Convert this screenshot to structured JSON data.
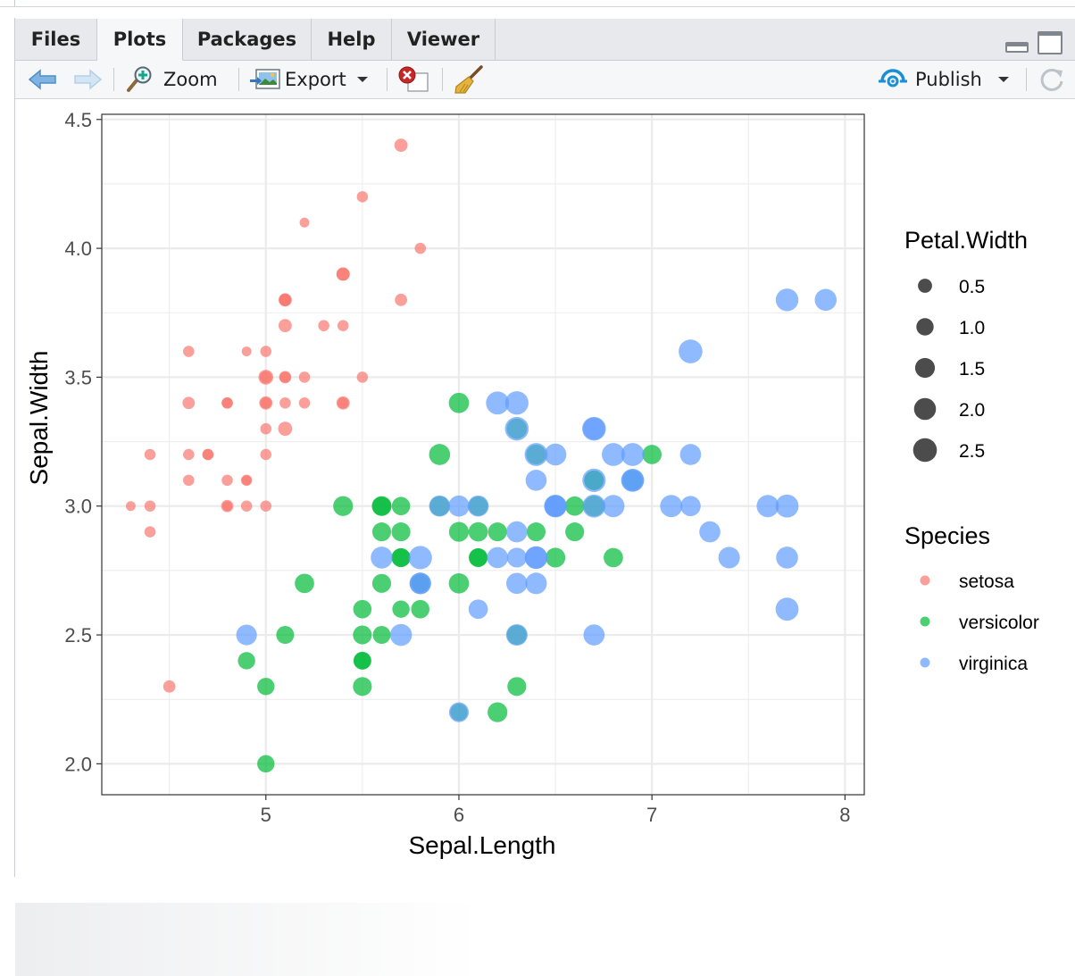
{
  "tabs": [
    {
      "label": "Files",
      "active": false
    },
    {
      "label": "Plots",
      "active": true
    },
    {
      "label": "Packages",
      "active": false
    },
    {
      "label": "Help",
      "active": false
    },
    {
      "label": "Viewer",
      "active": false
    }
  ],
  "toolbar": {
    "zoom_label": "Zoom",
    "export_label": "Export",
    "publish_label": "Publish"
  },
  "colors": {
    "setosa": "#F8766D",
    "versicolor": "#00BA38",
    "virginica": "#619CFF",
    "grid": "#ebebeb"
  },
  "icons": {
    "back": "arrow-left-icon",
    "forward": "arrow-right-icon",
    "zoom": "magnifier-plus-icon",
    "export": "picture-export-icon",
    "remove": "remove-plot-icon",
    "clear": "broom-icon",
    "publish": "publish-icon",
    "refresh": "refresh-icon"
  },
  "chart_data": {
    "type": "scatter",
    "title": "",
    "xlabel": "Sepal.Length",
    "ylabel": "Sepal.Width",
    "xlim": [
      4.15,
      8.1
    ],
    "ylim": [
      1.88,
      4.52
    ],
    "x_ticks": [
      "5",
      "6",
      "7",
      "8"
    ],
    "y_ticks": [
      "2.0",
      "2.5",
      "3.0",
      "3.5",
      "4.0",
      "4.5"
    ],
    "grid": true,
    "size_legend": {
      "title": "Petal.Width",
      "items": [
        {
          "label": "0.5",
          "value": 0.5
        },
        {
          "label": "1.0",
          "value": 1.0
        },
        {
          "label": "1.5",
          "value": 1.5
        },
        {
          "label": "2.0",
          "value": 2.0
        },
        {
          "label": "2.5",
          "value": 2.5
        }
      ]
    },
    "color_legend": {
      "title": "Species",
      "items": [
        "setosa",
        "versicolor",
        "virginica"
      ]
    },
    "legend_position": "right",
    "series": [
      {
        "name": "setosa",
        "points": [
          [
            5.1,
            3.5,
            0.2
          ],
          [
            4.9,
            3.0,
            0.2
          ],
          [
            4.7,
            3.2,
            0.2
          ],
          [
            4.6,
            3.1,
            0.2
          ],
          [
            5.0,
            3.6,
            0.2
          ],
          [
            5.4,
            3.9,
            0.4
          ],
          [
            4.6,
            3.4,
            0.3
          ],
          [
            5.0,
            3.4,
            0.2
          ],
          [
            4.4,
            2.9,
            0.2
          ],
          [
            4.9,
            3.1,
            0.1
          ],
          [
            5.4,
            3.7,
            0.2
          ],
          [
            4.8,
            3.4,
            0.2
          ],
          [
            4.8,
            3.0,
            0.1
          ],
          [
            4.3,
            3.0,
            0.1
          ],
          [
            5.8,
            4.0,
            0.2
          ],
          [
            5.7,
            4.4,
            0.4
          ],
          [
            5.4,
            3.9,
            0.4
          ],
          [
            5.1,
            3.5,
            0.3
          ],
          [
            5.7,
            3.8,
            0.3
          ],
          [
            5.1,
            3.8,
            0.3
          ],
          [
            5.4,
            3.4,
            0.2
          ],
          [
            5.1,
            3.7,
            0.4
          ],
          [
            4.6,
            3.6,
            0.2
          ],
          [
            5.1,
            3.3,
            0.5
          ],
          [
            4.8,
            3.4,
            0.2
          ],
          [
            5.0,
            3.0,
            0.2
          ],
          [
            5.0,
            3.4,
            0.4
          ],
          [
            5.2,
            3.5,
            0.2
          ],
          [
            5.2,
            3.4,
            0.2
          ],
          [
            4.7,
            3.2,
            0.2
          ],
          [
            4.8,
            3.1,
            0.2
          ],
          [
            5.4,
            3.4,
            0.4
          ],
          [
            5.2,
            4.1,
            0.1
          ],
          [
            5.5,
            4.2,
            0.2
          ],
          [
            4.9,
            3.1,
            0.2
          ],
          [
            5.0,
            3.2,
            0.2
          ],
          [
            5.5,
            3.5,
            0.2
          ],
          [
            4.9,
            3.6,
            0.1
          ],
          [
            4.4,
            3.0,
            0.2
          ],
          [
            5.1,
            3.4,
            0.2
          ],
          [
            5.0,
            3.5,
            0.3
          ],
          [
            4.5,
            2.3,
            0.3
          ],
          [
            4.4,
            3.2,
            0.2
          ],
          [
            5.0,
            3.5,
            0.6
          ],
          [
            5.1,
            3.8,
            0.4
          ],
          [
            4.8,
            3.0,
            0.3
          ],
          [
            5.1,
            3.8,
            0.2
          ],
          [
            4.6,
            3.2,
            0.2
          ],
          [
            5.3,
            3.7,
            0.2
          ],
          [
            5.0,
            3.3,
            0.2
          ]
        ]
      },
      {
        "name": "versicolor",
        "points": [
          [
            7.0,
            3.2,
            1.4
          ],
          [
            6.4,
            3.2,
            1.5
          ],
          [
            6.9,
            3.1,
            1.5
          ],
          [
            5.5,
            2.3,
            1.3
          ],
          [
            6.5,
            2.8,
            1.5
          ],
          [
            5.7,
            2.8,
            1.3
          ],
          [
            6.3,
            3.3,
            1.6
          ],
          [
            4.9,
            2.4,
            1.0
          ],
          [
            6.6,
            2.9,
            1.3
          ],
          [
            5.2,
            2.7,
            1.4
          ],
          [
            5.0,
            2.0,
            1.0
          ],
          [
            5.9,
            3.0,
            1.5
          ],
          [
            6.0,
            2.2,
            1.0
          ],
          [
            6.1,
            2.9,
            1.4
          ],
          [
            5.6,
            2.9,
            1.3
          ],
          [
            6.7,
            3.1,
            1.4
          ],
          [
            5.6,
            3.0,
            1.5
          ],
          [
            5.8,
            2.7,
            1.0
          ],
          [
            6.2,
            2.2,
            1.5
          ],
          [
            5.6,
            2.5,
            1.1
          ],
          [
            5.9,
            3.2,
            1.8
          ],
          [
            6.1,
            2.8,
            1.3
          ],
          [
            6.3,
            2.5,
            1.5
          ],
          [
            6.1,
            2.8,
            1.2
          ],
          [
            6.4,
            2.9,
            1.3
          ],
          [
            6.6,
            3.0,
            1.4
          ],
          [
            6.8,
            2.8,
            1.4
          ],
          [
            6.7,
            3.0,
            1.7
          ],
          [
            6.0,
            2.9,
            1.5
          ],
          [
            5.7,
            2.6,
            1.0
          ],
          [
            5.5,
            2.4,
            1.1
          ],
          [
            5.5,
            2.4,
            1.0
          ],
          [
            5.8,
            2.7,
            1.2
          ],
          [
            6.0,
            2.7,
            1.6
          ],
          [
            5.4,
            3.0,
            1.5
          ],
          [
            6.0,
            3.4,
            1.6
          ],
          [
            6.7,
            3.1,
            1.5
          ],
          [
            6.3,
            2.3,
            1.3
          ],
          [
            5.6,
            3.0,
            1.3
          ],
          [
            5.5,
            2.5,
            1.3
          ],
          [
            5.5,
            2.6,
            1.2
          ],
          [
            6.1,
            3.0,
            1.4
          ],
          [
            5.8,
            2.6,
            1.2
          ],
          [
            5.0,
            2.3,
            1.0
          ],
          [
            5.6,
            2.7,
            1.3
          ],
          [
            5.7,
            3.0,
            1.2
          ],
          [
            5.7,
            2.9,
            1.3
          ],
          [
            6.2,
            2.9,
            1.3
          ],
          [
            5.1,
            2.5,
            1.1
          ],
          [
            5.7,
            2.8,
            1.3
          ]
        ]
      },
      {
        "name": "virginica",
        "points": [
          [
            6.3,
            3.3,
            2.5
          ],
          [
            5.8,
            2.7,
            1.9
          ],
          [
            7.1,
            3.0,
            2.1
          ],
          [
            6.3,
            2.9,
            1.8
          ],
          [
            6.5,
            3.0,
            2.2
          ],
          [
            7.6,
            3.0,
            2.1
          ],
          [
            4.9,
            2.5,
            1.7
          ],
          [
            7.3,
            2.9,
            1.8
          ],
          [
            6.7,
            2.5,
            1.8
          ],
          [
            7.2,
            3.6,
            2.5
          ],
          [
            6.5,
            3.2,
            2.0
          ],
          [
            6.4,
            2.7,
            1.9
          ],
          [
            6.8,
            3.0,
            2.1
          ],
          [
            5.7,
            2.5,
            2.0
          ],
          [
            5.8,
            2.8,
            2.4
          ],
          [
            6.4,
            3.2,
            2.3
          ],
          [
            6.5,
            3.0,
            1.8
          ],
          [
            7.7,
            3.8,
            2.2
          ],
          [
            7.7,
            2.6,
            2.3
          ],
          [
            6.0,
            2.2,
            1.5
          ],
          [
            6.9,
            3.2,
            2.3
          ],
          [
            5.6,
            2.8,
            2.0
          ],
          [
            7.7,
            2.8,
            2.0
          ],
          [
            6.3,
            2.7,
            1.8
          ],
          [
            6.7,
            3.3,
            2.1
          ],
          [
            7.2,
            3.2,
            1.8
          ],
          [
            6.2,
            2.8,
            1.8
          ],
          [
            6.1,
            3.0,
            1.8
          ],
          [
            6.4,
            2.8,
            2.1
          ],
          [
            7.2,
            3.0,
            1.6
          ],
          [
            7.4,
            2.8,
            1.9
          ],
          [
            7.9,
            3.8,
            2.0
          ],
          [
            6.4,
            2.8,
            2.2
          ],
          [
            6.3,
            2.8,
            1.5
          ],
          [
            6.1,
            2.6,
            1.4
          ],
          [
            7.7,
            3.0,
            2.3
          ],
          [
            6.3,
            3.4,
            2.4
          ],
          [
            6.4,
            3.1,
            1.8
          ],
          [
            6.0,
            3.0,
            1.8
          ],
          [
            6.9,
            3.1,
            2.1
          ],
          [
            6.7,
            3.1,
            2.4
          ],
          [
            6.9,
            3.1,
            2.3
          ],
          [
            5.8,
            2.7,
            1.9
          ],
          [
            6.8,
            3.2,
            2.3
          ],
          [
            6.7,
            3.3,
            2.5
          ],
          [
            6.7,
            3.0,
            2.3
          ],
          [
            6.3,
            2.5,
            1.9
          ],
          [
            6.5,
            3.0,
            2.0
          ],
          [
            6.2,
            3.4,
            2.3
          ],
          [
            5.9,
            3.0,
            1.8
          ]
        ]
      }
    ]
  }
}
